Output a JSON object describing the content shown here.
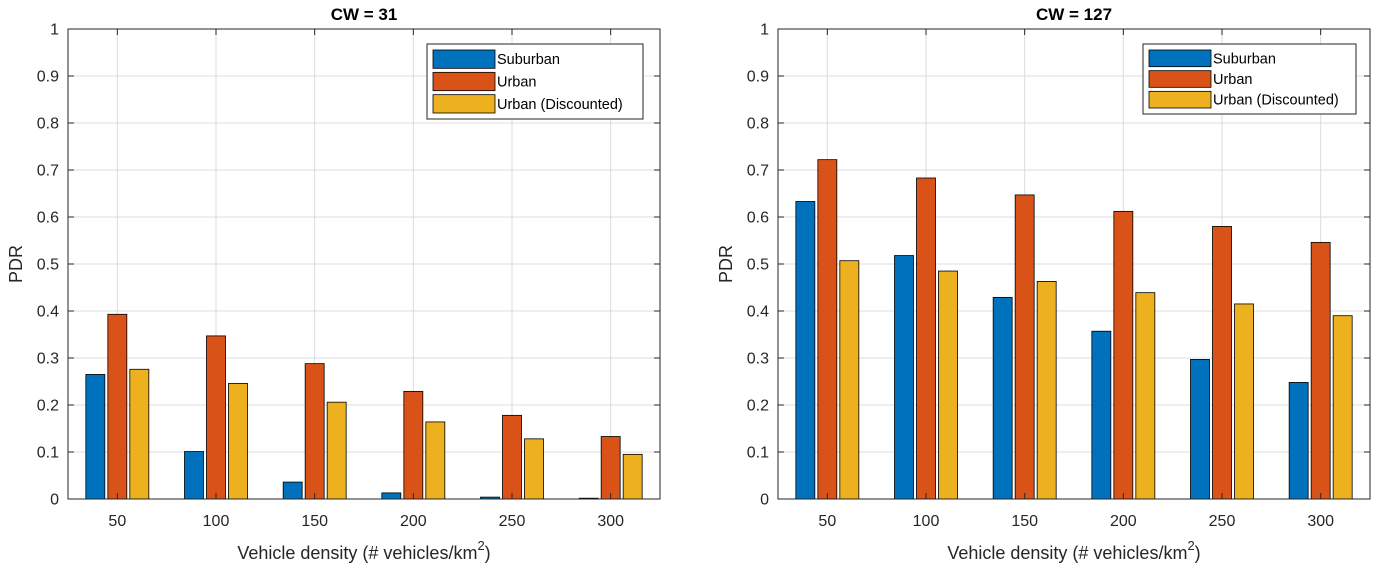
{
  "chart_data": [
    {
      "type": "bar",
      "title": "CW = 31",
      "xlabel": "Vehicle density (# vehicles/km",
      "xlabel_sup": "2",
      "xlabel_end": ")",
      "ylabel": "PDR",
      "ylim": [
        0,
        1
      ],
      "yticks": [
        "0",
        "0.1",
        "0.2",
        "0.3",
        "0.4",
        "0.5",
        "0.6",
        "0.7",
        "0.8",
        "0.9",
        "1"
      ],
      "categories": [
        "50",
        "100",
        "150",
        "200",
        "250",
        "300"
      ],
      "grid": true,
      "legend_position": "top-right",
      "series": [
        {
          "name": "Suburban",
          "color": "#0072BD",
          "values": [
            0.265,
            0.101,
            0.036,
            0.013,
            0.004,
            0.001
          ]
        },
        {
          "name": "Urban",
          "color": "#D95319",
          "values": [
            0.393,
            0.347,
            0.288,
            0.229,
            0.178,
            0.133
          ]
        },
        {
          "name": "Urban (Discounted)",
          "color": "#EDB120",
          "values": [
            0.276,
            0.246,
            0.206,
            0.164,
            0.128,
            0.095
          ]
        }
      ]
    },
    {
      "type": "bar",
      "title": "CW = 127",
      "xlabel": "Vehicle density (# vehicles/km",
      "xlabel_sup": "2",
      "xlabel_end": ")",
      "ylabel": "PDR",
      "ylim": [
        0,
        1
      ],
      "yticks": [
        "0",
        "0.1",
        "0.2",
        "0.3",
        "0.4",
        "0.5",
        "0.6",
        "0.7",
        "0.8",
        "0.9",
        "1"
      ],
      "categories": [
        "50",
        "100",
        "150",
        "200",
        "250",
        "300"
      ],
      "grid": true,
      "legend_position": "top-right",
      "series": [
        {
          "name": "Suburban",
          "color": "#0072BD",
          "values": [
            0.633,
            0.518,
            0.429,
            0.357,
            0.297,
            0.248
          ]
        },
        {
          "name": "Urban",
          "color": "#D95319",
          "values": [
            0.722,
            0.683,
            0.647,
            0.612,
            0.58,
            0.546
          ]
        },
        {
          "name": "Urban (Discounted)",
          "color": "#EDB120",
          "values": [
            0.507,
            0.485,
            0.463,
            0.439,
            0.415,
            0.39
          ]
        }
      ]
    }
  ]
}
